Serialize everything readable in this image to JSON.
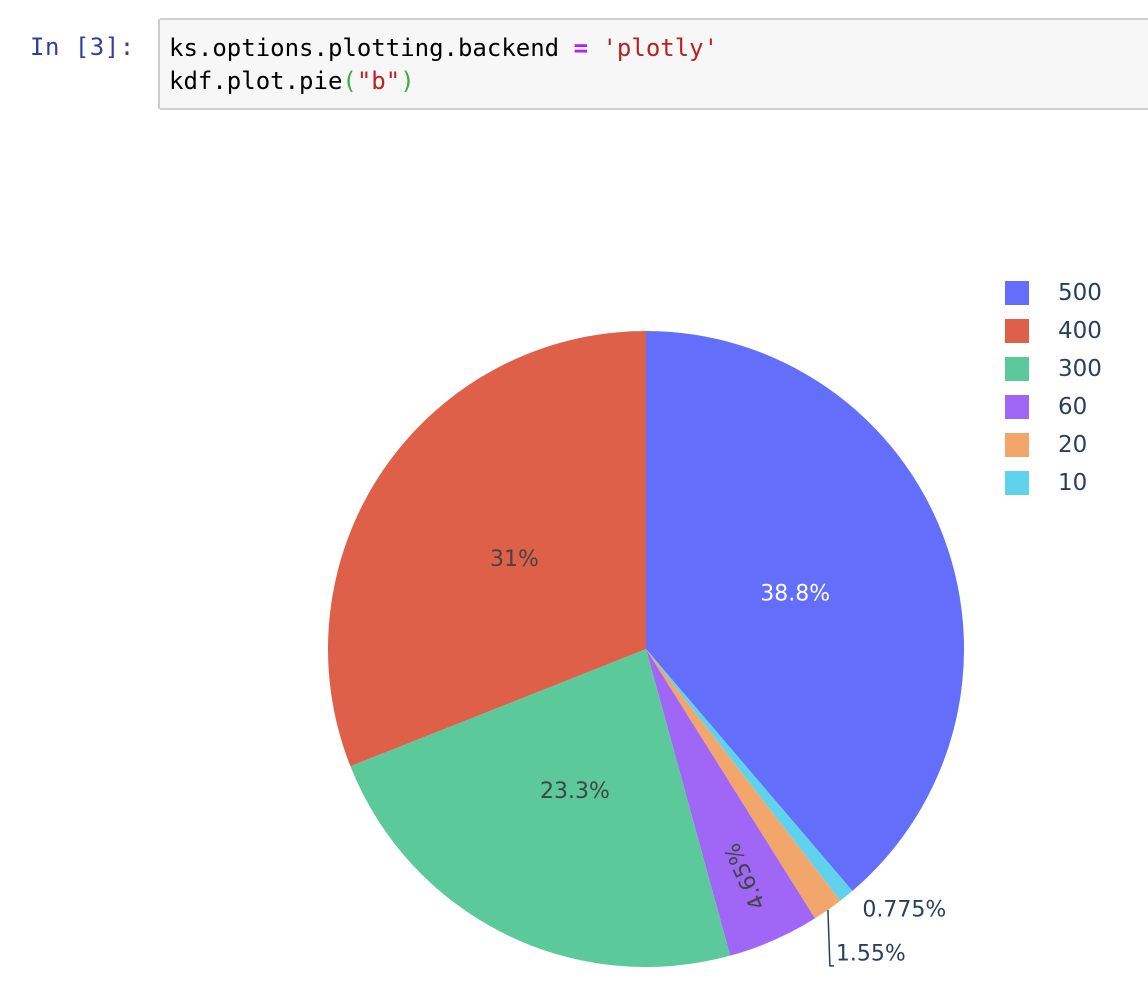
{
  "cell": {
    "prompt": "In [3]:",
    "line1": {
      "pre": "ks.options.plotting.backend ",
      "op": "=",
      "sp": " ",
      "str": "'plotly'"
    },
    "line2": {
      "pre": "kdf.plot.pie",
      "open": "(",
      "str": "\"b\"",
      "close": ")"
    }
  },
  "colors": {
    "500": "#636efa",
    "400": "#ef553b",
    "300": "#00cc96",
    "60": "#ab63fa",
    "20": "#ffa15a",
    "10": "#19d3f3"
  },
  "chart_data": {
    "type": "pie",
    "direction": "clockwise",
    "start": "top",
    "legend_position": "top-right",
    "slices": [
      {
        "label": "500",
        "value": 500,
        "percent_text": "38.8%",
        "color": "#636efa",
        "text_color": "#ffffff"
      },
      {
        "label": "10",
        "value": 10,
        "percent_text": "0.775%",
        "color": "#5fd3ee",
        "text_color": "#2a3f5f"
      },
      {
        "label": "20",
        "value": 20,
        "percent_text": "1.55%",
        "color": "#f3a66b",
        "text_color": "#2a3f5f"
      },
      {
        "label": "60",
        "value": 60,
        "percent_text": "4.65%",
        "color": "#a066f5",
        "text_color": "#444444"
      },
      {
        "label": "300",
        "value": 300,
        "percent_text": "23.3%",
        "color": "#5bc99a",
        "text_color": "#444444"
      },
      {
        "label": "400",
        "value": 400,
        "percent_text": "31%",
        "color": "#df6048",
        "text_color": "#444444"
      }
    ],
    "legend": [
      "500",
      "400",
      "300",
      "60",
      "20",
      "10"
    ]
  }
}
